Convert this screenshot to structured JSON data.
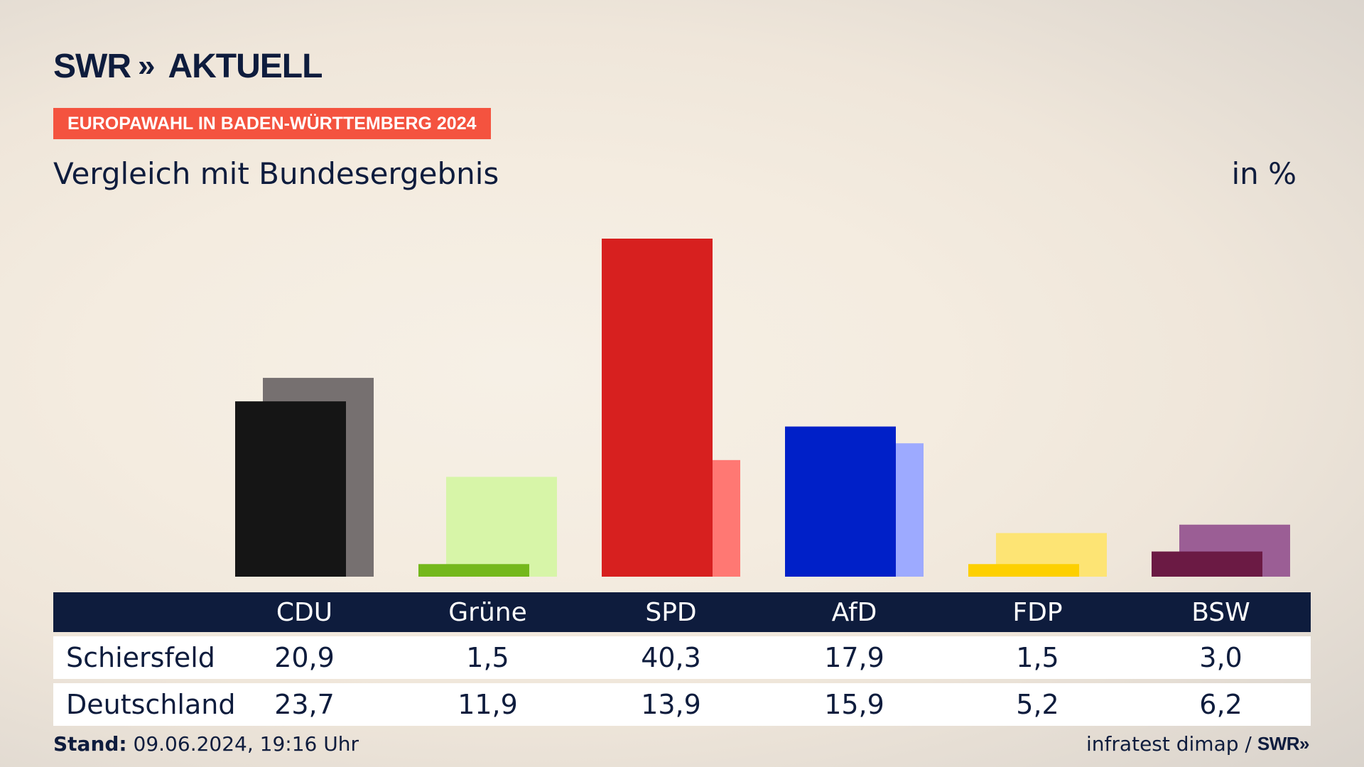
{
  "brand": {
    "logo_swr": "SWR",
    "logo_chevrons": "»",
    "logo_aktuell": "AKTUELL",
    "accent_color": "#f4533f"
  },
  "header": {
    "badge": "EUROPAWAHL IN BADEN-WÜRTTEMBERG 2024",
    "subtitle": "Vergleich mit Bundesergebnis",
    "unit": "in %"
  },
  "chart_data": {
    "type": "bar",
    "title": "Vergleich mit Bundesergebnis",
    "ylabel": "in %",
    "ylim": [
      0,
      40.3
    ],
    "categories": [
      "CDU",
      "Grüne",
      "SPD",
      "AfD",
      "FDP",
      "BSW"
    ],
    "series": [
      {
        "name": "Schiersfeld",
        "values": [
          20.9,
          1.5,
          40.3,
          17.9,
          1.5,
          3.0
        ],
        "colors": [
          "#151515",
          "#74b81c",
          "#d7201f",
          "#0020c8",
          "#fdd000",
          "#6b1a44"
        ]
      },
      {
        "name": "Deutschland",
        "values": [
          23.7,
          11.9,
          13.9,
          15.9,
          5.2,
          6.2
        ],
        "colors": [
          "#767070",
          "#d7f5a8",
          "#ff7873",
          "#9daaff",
          "#fde474",
          "#9b5e95"
        ]
      }
    ]
  },
  "table": {
    "headers": [
      "CDU",
      "Grüne",
      "SPD",
      "AfD",
      "FDP",
      "BSW"
    ],
    "rows": [
      {
        "label": "Schiersfeld",
        "values": [
          "20,9",
          "1,5",
          "40,3",
          "17,9",
          "1,5",
          "3,0"
        ]
      },
      {
        "label": "Deutschland",
        "values": [
          "23,7",
          "11,9",
          "13,9",
          "15,9",
          "5,2",
          "6,2"
        ]
      }
    ]
  },
  "footer": {
    "stand_label": "Stand:",
    "stand_value": "09.06.2024, 19:16 Uhr",
    "source": "infratest dimap /",
    "source_brand": "SWR",
    "source_chevrons": "»"
  }
}
